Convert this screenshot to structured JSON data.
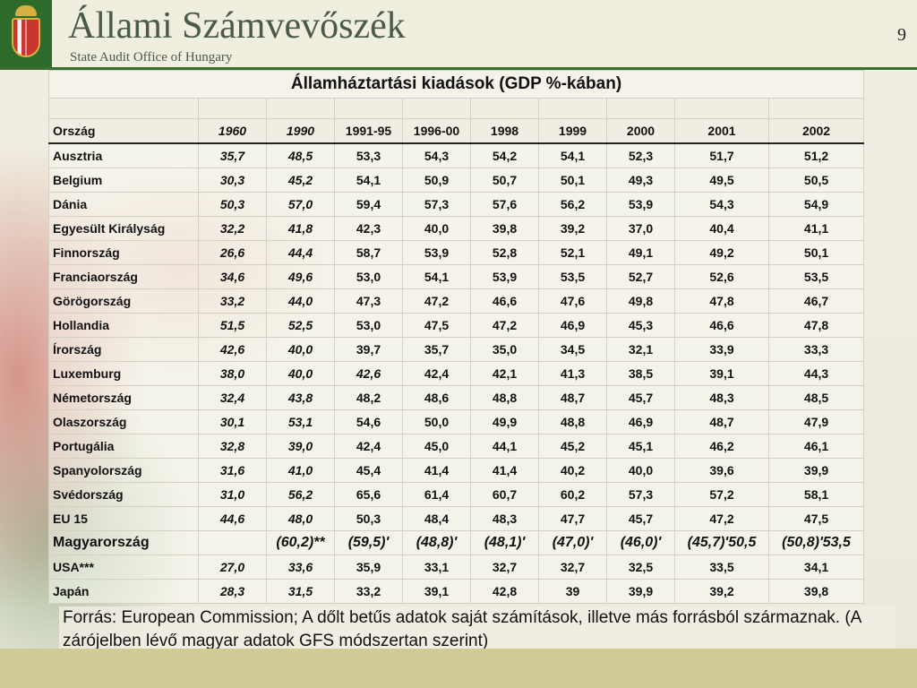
{
  "header": {
    "title": "Állami Számvevőszék",
    "subtitle": "State Audit Office of Hungary",
    "page_number": "9"
  },
  "table": {
    "title": "Államháztartási kiadások (GDP %-kában)",
    "column_headers": [
      "Ország",
      "1960",
      "1990",
      "1991-95",
      "1996-00",
      "1998",
      "1999",
      "2000",
      "2001",
      "2002"
    ],
    "rows": [
      [
        "Ausztria",
        "35,7",
        "48,5",
        "53,3",
        "54,3",
        "54,2",
        "54,1",
        "52,3",
        "51,7",
        "51,2"
      ],
      [
        "Belgium",
        "30,3",
        "45,2",
        "54,1",
        "50,9",
        "50,7",
        "50,1",
        "49,3",
        "49,5",
        "50,5"
      ],
      [
        "Dánia",
        "50,3",
        "57,0",
        "59,4",
        "57,3",
        "57,6",
        "56,2",
        "53,9",
        "54,3",
        "54,9"
      ],
      [
        "Egyesült Királyság",
        "32,2",
        "41,8",
        "42,3",
        "40,0",
        "39,8",
        "39,2",
        "37,0",
        "40,4",
        "41,1"
      ],
      [
        "Finnország",
        "26,6",
        "44,4",
        "58,7",
        "53,9",
        "52,8",
        "52,1",
        "49,1",
        "49,2",
        "50,1"
      ],
      [
        "Franciaország",
        "34,6",
        "49,6",
        "53,0",
        "54,1",
        "53,9",
        "53,5",
        "52,7",
        "52,6",
        "53,5"
      ],
      [
        "Görögország",
        "33,2",
        "44,0",
        "47,3",
        "47,2",
        "46,6",
        "47,6",
        "49,8",
        "47,8",
        "46,7"
      ],
      [
        "Hollandia",
        "51,5",
        "52,5",
        "53,0",
        "47,5",
        "47,2",
        "46,9",
        "45,3",
        "46,6",
        "47,8"
      ],
      [
        "Írország",
        "42,6",
        "40,0",
        "39,7",
        "35,7",
        "35,0",
        "34,5",
        "32,1",
        "33,9",
        "33,3"
      ],
      [
        "Luxemburg",
        "38,0",
        "40,0",
        "42,6",
        "42,4",
        "42,1",
        "41,3",
        "38,5",
        "39,1",
        "44,3"
      ],
      [
        "Németország",
        "32,4",
        "43,8",
        "48,2",
        "48,6",
        "48,8",
        "48,7",
        "45,7",
        "48,3",
        "48,5"
      ],
      [
        "Olaszország",
        "30,1",
        "53,1",
        "54,6",
        "50,0",
        "49,9",
        "48,8",
        "46,9",
        "48,7",
        "47,9"
      ],
      [
        "Portugália",
        "32,8",
        "39,0",
        "42,4",
        "45,0",
        "44,1",
        "45,2",
        "45,1",
        "46,2",
        "46,1"
      ],
      [
        "Spanyolország",
        "31,6",
        "41,0",
        "45,4",
        "41,4",
        "41,4",
        "40,2",
        "40,0",
        "39,6",
        "39,9"
      ],
      [
        "Svédország",
        "31,0",
        "56,2",
        "65,6",
        "61,4",
        "60,7",
        "60,2",
        "57,3",
        "57,2",
        "58,1"
      ],
      [
        "EU 15",
        "44,6",
        "48,0",
        "50,3",
        "48,4",
        "48,3",
        "47,7",
        "45,7",
        "47,2",
        "47,5"
      ],
      [
        "Magyarország",
        "",
        "(60,2)**",
        "(59,5)'",
        "(48,8)'",
        "(48,1)'",
        "(47,0)'",
        "(46,0)'",
        "(45,7)'50,5",
        "(50,8)'53,5"
      ],
      [
        "USA***",
        "27,0",
        "33,6",
        "35,9",
        "33,1",
        "32,7",
        "32,7",
        "32,5",
        "33,5",
        "34,1"
      ],
      [
        "Japán",
        "28,3",
        "31,5",
        "33,2",
        "39,1",
        "42,8",
        "39",
        "39,9",
        "39,2",
        "39,8"
      ]
    ]
  },
  "source_note": "Forrás: European Commission; A dőlt betűs adatok saját számítások, illetve más forrásból származnak.  (A zárójelben lévő magyar adatok GFS módszertan szerint)",
  "colors": {
    "header_bg": "#f0eedf",
    "crest_green": "#2e6b2a",
    "brand_text": "#4a5a48",
    "bottom_bar": "#cfcc95"
  }
}
